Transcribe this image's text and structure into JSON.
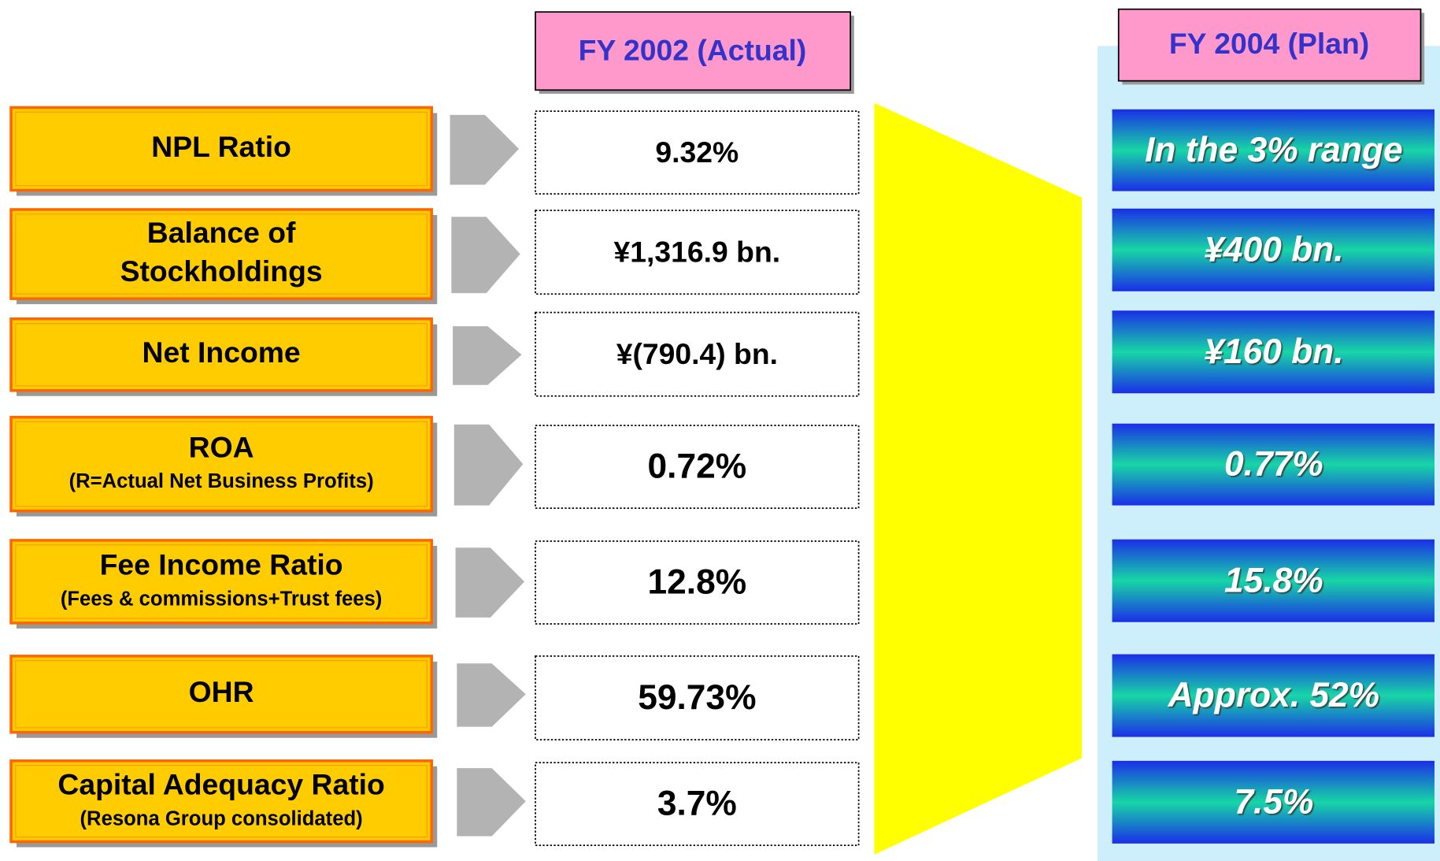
{
  "headers": {
    "actual": "FY 2002 (Actual)",
    "plan": "FY 2004 (Plan)"
  },
  "rows": [
    {
      "label": [
        "NPL Ratio"
      ],
      "actual": "9.32%",
      "plan": "In the 3% range"
    },
    {
      "label": [
        "Balance of",
        "Stockholdings"
      ],
      "actual": "¥1,316.9 bn.",
      "plan": "¥400 bn."
    },
    {
      "label": [
        "Net Income"
      ],
      "actual": "¥(790.4) bn.",
      "plan": "¥160 bn."
    },
    {
      "label": [
        "ROA"
      ],
      "sublabel": "(R=Actual Net Business Profits)",
      "actual": "0.72%",
      "plan": "0.77%"
    },
    {
      "label": [
        "Fee Income Ratio"
      ],
      "sublabel": "(Fees & commissions+Trust fees)",
      "actual": "12.8%",
      "plan": "15.8%"
    },
    {
      "label": [
        "OHR"
      ],
      "actual": "59.73%",
      "plan": "Approx. 52%"
    },
    {
      "label": [
        "Capital Adequacy Ratio"
      ],
      "sublabel": "(Resona Group consolidated)",
      "actual": "3.7%",
      "plan": "7.5%"
    }
  ]
}
